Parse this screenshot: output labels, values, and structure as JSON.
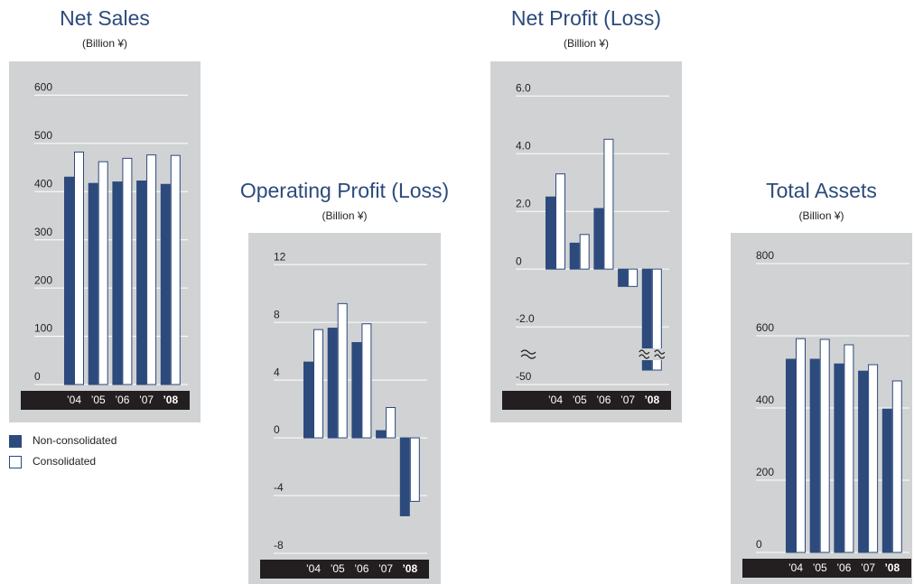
{
  "legend": {
    "items": [
      {
        "name": "Non-consolidated",
        "color": "#2c4a7c"
      },
      {
        "name": "Consolidated",
        "color": "#ffffff"
      }
    ]
  },
  "chart_data": [
    {
      "type": "bar",
      "title": "Net Sales",
      "subtitle": "(Billion ¥)",
      "categories": [
        "’04",
        "’05",
        "’06",
        "’07",
        "’08"
      ],
      "highlight_index": 4,
      "series": [
        {
          "values": [
            430,
            417,
            420,
            422,
            415
          ]
        },
        {
          "values": [
            482,
            462,
            469,
            476,
            475
          ]
        }
      ],
      "ylim": [
        0,
        670
      ],
      "yticks": [
        0,
        100,
        200,
        300,
        400,
        500,
        600
      ],
      "grid": true,
      "legend": true
    },
    {
      "type": "bar",
      "title": "Operating Profit (Loss)",
      "subtitle": "(Billion ¥)",
      "categories": [
        "’04",
        "’05",
        "’06",
        "’07",
        "’08"
      ],
      "highlight_index": 4,
      "series": [
        {
          "values": [
            5.25,
            7.6,
            6.6,
            0.5,
            -5.4
          ]
        },
        {
          "values": [
            7.5,
            9.3,
            7.9,
            2.1,
            -4.4
          ]
        }
      ],
      "ylim": [
        -8,
        14.2
      ],
      "yticks": [
        -8,
        -4,
        0,
        4,
        8,
        12
      ],
      "grid": true
    },
    {
      "type": "bar",
      "title": "Net Profit (Loss)",
      "subtitle": "(Billion ¥)",
      "categories": [
        "’04",
        "’05",
        "’06",
        "’07",
        "’08"
      ],
      "highlight_index": 4,
      "series": [
        {
          "values": [
            2.5,
            0.9,
            2.1,
            -0.6,
            -49.5
          ]
        },
        {
          "values": [
            3.3,
            1.2,
            4.5,
            -0.6,
            -49.5
          ]
        }
      ],
      "ylim": [
        -50,
        7.2
      ],
      "axis_break": [
        -3,
        -49
      ],
      "yticks": [
        -50,
        {
          "value": -2,
          "label": "-2.0"
        },
        0,
        {
          "value": 2,
          "label": "2.0"
        },
        {
          "value": 4,
          "label": "4.0"
        },
        {
          "value": 6,
          "label": "6.0"
        }
      ],
      "grid": true
    },
    {
      "type": "bar",
      "title": "Total Assets",
      "subtitle": "(Billion ¥)",
      "categories": [
        "’04",
        "’05",
        "’06",
        "’07",
        "’08"
      ],
      "highlight_index": 4,
      "series": [
        {
          "values": [
            535,
            535,
            522,
            502,
            397
          ]
        },
        {
          "values": [
            592,
            590,
            575,
            520,
            475
          ]
        }
      ],
      "ylim": [
        0,
        885
      ],
      "yticks": [
        0,
        200,
        400,
        600,
        800
      ],
      "grid": true
    }
  ]
}
